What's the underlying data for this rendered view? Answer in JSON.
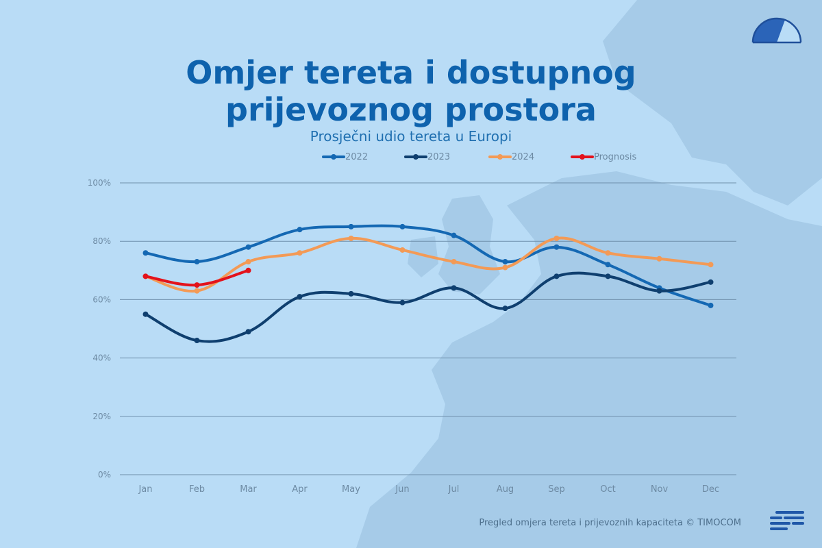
{
  "title_line1": "Omjer tereta i dostupnog",
  "title_line2": "prijevoznog prostora",
  "subtitle": "Prosječni udio tereta u Europi",
  "footer": "Pregled omjera tereta i prijevoznih kapaciteta © TIMOCOM",
  "colors": {
    "background": "#b9dcf6",
    "map": "#a6cbe8",
    "grid": "#6e8fab",
    "title": "#0e62ad"
  },
  "icons": {
    "gauge": "gauge-logo-icon",
    "brand": "timocom-lines-icon"
  },
  "chart_data": {
    "type": "line",
    "title": "Omjer tereta i dostupnog prijevoznog prostora",
    "subtitle": "Prosječni udio tereta u Europi",
    "categories": [
      "Jan",
      "Feb",
      "Mar",
      "Apr",
      "May",
      "Jun",
      "Jul",
      "Aug",
      "Sep",
      "Oct",
      "Nov",
      "Dec"
    ],
    "ylim": [
      0,
      100
    ],
    "yticks": [
      0,
      20,
      40,
      60,
      80,
      100
    ],
    "ytick_labels": [
      "0%",
      "20%",
      "40%",
      "60%",
      "80%",
      "100%"
    ],
    "grid": true,
    "legend_position": "top",
    "series": [
      {
        "name": "2022",
        "color": "#1468b3",
        "values": [
          76,
          73,
          78,
          84,
          85,
          85,
          82,
          73,
          78,
          72,
          64,
          58
        ]
      },
      {
        "name": "2023",
        "color": "#0f3f6f",
        "values": [
          55,
          46,
          49,
          61,
          62,
          59,
          64,
          57,
          68,
          68,
          63,
          66
        ]
      },
      {
        "name": "2024",
        "color": "#f39a56",
        "values": [
          68,
          63,
          73,
          76,
          81,
          77,
          73,
          71,
          81,
          76,
          74,
          72
        ]
      },
      {
        "name": "Prognosis",
        "color": "#e3121b",
        "values": [
          68,
          65,
          70,
          null,
          null,
          null,
          null,
          null,
          null,
          null,
          null,
          null
        ]
      }
    ]
  }
}
